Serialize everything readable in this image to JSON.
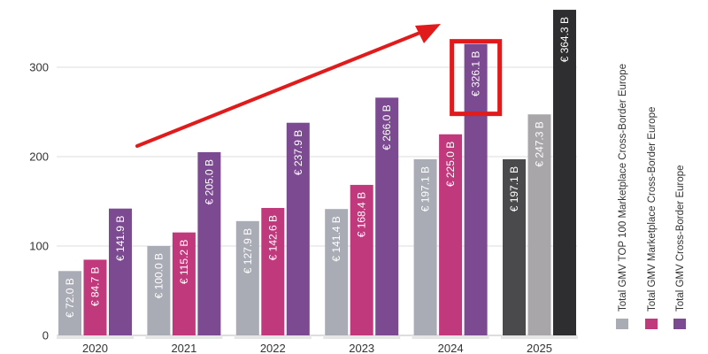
{
  "chart_data": {
    "type": "bar",
    "title": "",
    "xlabel": "",
    "ylabel": "",
    "ylim": [
      0,
      370
    ],
    "yticks": [
      0,
      100,
      200,
      300
    ],
    "grid": true,
    "legend_placement": "right",
    "categories": [
      "2020",
      "2021",
      "2022",
      "2023",
      "2024",
      "2025"
    ],
    "series": [
      {
        "name": "Total GMV TOP 100 Marketplace Cross-Border Europe",
        "color": "#a9acb5",
        "values": [
          72.0,
          100.0,
          127.9,
          141.4,
          197.1,
          197.1
        ],
        "labels": [
          "€ 72.0 B",
          "€ 100.0 B",
          "€ 127.9 B",
          "€ 141.4 B",
          "€ 197.1 B",
          "€ 197.1 B"
        ]
      },
      {
        "name": "Total GMV Marketplace Cross-Border Europe",
        "color": "#c0397c",
        "values": [
          84.7,
          115.2,
          142.6,
          168.4,
          225.0,
          247.3
        ],
        "labels": [
          "€ 84.7 B",
          "€ 115.2 B",
          "€ 142.6 B",
          "€ 168.4 B",
          "€ 225.0 B",
          "€ 247.3 B"
        ]
      },
      {
        "name": "Total GMV Cross-Border Europe",
        "color": "#7c4a90",
        "values": [
          141.9,
          205.0,
          237.9,
          266.0,
          326.1,
          364.3
        ],
        "labels": [
          "€ 141.9 B",
          "€ 205.0 B",
          "€ 237.9 B",
          "€ 266.0 B",
          "€ 326.1 B",
          "€ 364.3 B"
        ]
      }
    ],
    "forecast_category": "2025",
    "forecast_colors": [
      "#4a4a4c",
      "#a9a6aa",
      "#2e2e30"
    ],
    "highlight": {
      "category": "2024",
      "series_index": 2,
      "color": "#e11b1b"
    },
    "trend_arrow_color": "#e11b1b",
    "gridline_color": "#dddddd",
    "category_band_color": "#e6e6e6"
  }
}
